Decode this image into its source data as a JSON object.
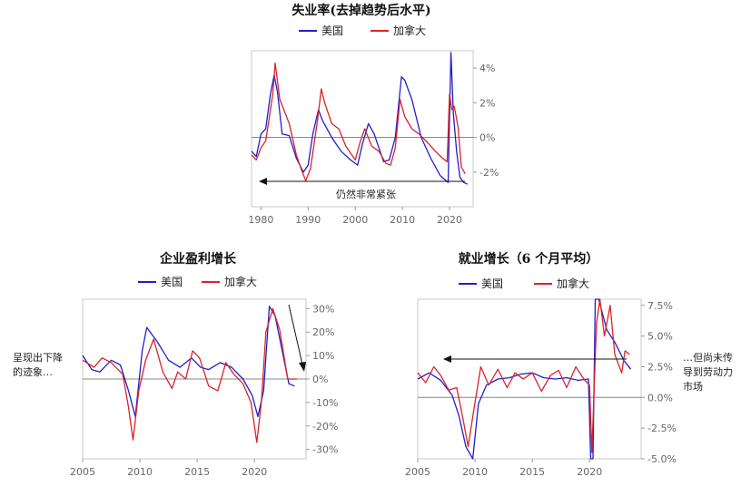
{
  "colors": {
    "us": "#1f1fcc",
    "ca": "#d8232a",
    "zero": "#888888"
  },
  "legend": {
    "us": "美国",
    "ca": "加拿大"
  },
  "side_notes": {
    "left": [
      "呈现出下降",
      "的迹象…"
    ],
    "right": [
      "…但尚未传",
      "导到劳动力",
      "市场"
    ]
  },
  "chart_data": [
    {
      "type": "line",
      "title": "失业率(去掉趋势后水平)",
      "annotation": "仍然非常紧张",
      "xlim": [
        1978,
        2025
      ],
      "ylim": [
        -4,
        5
      ],
      "xticks": [
        1980,
        1990,
        2000,
        2010,
        2020
      ],
      "xtick_labels": [
        "1980",
        "1990",
        "2000",
        "2010",
        "2020"
      ],
      "yticks": [
        -2,
        0,
        2,
        4
      ],
      "ytick_labels": [
        "-2%",
        "0%",
        "2%",
        "4%"
      ],
      "series": [
        {
          "name": "美国",
          "color_key": "us",
          "x": [
            1978,
            1979,
            1980,
            1981,
            1982,
            1982.8,
            1983.5,
            1984.5,
            1986,
            1987.5,
            1989,
            1990,
            1991,
            1992.2,
            1993,
            1995,
            1997,
            1999,
            2000.5,
            2001.5,
            2002.8,
            2004,
            2006,
            2007.2,
            2008.5,
            2009.8,
            2010.5,
            2012,
            2014,
            2016,
            2018,
            2019.7,
            2020.3,
            2020.8,
            2021.5,
            2022.2,
            2023,
            2023.8
          ],
          "y": [
            -0.8,
            -1.1,
            0.2,
            0.5,
            2.5,
            3.6,
            2.6,
            0.2,
            0.1,
            -1.2,
            -2.0,
            -1.6,
            0.2,
            1.6,
            1.0,
            0.0,
            -0.8,
            -1.3,
            -1.6,
            -0.4,
            0.8,
            0.2,
            -1.4,
            -1.3,
            0.0,
            3.5,
            3.3,
            2.2,
            0.0,
            -1.2,
            -2.2,
            -2.6,
            4.9,
            1.4,
            -0.8,
            -2.3,
            -2.6,
            -2.7
          ]
        },
        {
          "name": "加拿大",
          "color_key": "ca",
          "x": [
            1978,
            1979,
            1980,
            1981,
            1982.5,
            1983,
            1984,
            1986,
            1987.5,
            1988.5,
            1989.5,
            1990.5,
            1992,
            1992.8,
            1993.5,
            1995,
            1996.5,
            1998,
            2000,
            2001,
            2002,
            2003.5,
            2005,
            2006.5,
            2007.5,
            2008.5,
            2009.5,
            2010.5,
            2012,
            2013.5,
            2015,
            2017,
            2018.5,
            2019.5,
            2020,
            2020.5,
            2021,
            2021.8,
            2022.5,
            2023.3
          ],
          "y": [
            -1.0,
            -1.3,
            -0.6,
            -0.2,
            2.5,
            4.3,
            2.2,
            0.8,
            -1.0,
            -1.8,
            -2.5,
            -1.8,
            1.0,
            2.8,
            2.0,
            0.8,
            0.5,
            -0.5,
            -1.3,
            -0.3,
            0.5,
            -0.5,
            -0.8,
            -1.5,
            -1.6,
            -0.6,
            2.2,
            1.2,
            0.5,
            0.2,
            -0.2,
            -0.8,
            -1.2,
            -1.4,
            2.5,
            1.6,
            1.8,
            0.6,
            -1.7,
            -2.1
          ]
        }
      ]
    },
    {
      "type": "line",
      "title": "企业盈利增长",
      "xlim": [
        2005,
        2024.5
      ],
      "ylim": [
        -34,
        34
      ],
      "xticks": [
        2005,
        2010,
        2015,
        2020
      ],
      "xtick_labels": [
        "2005",
        "2010",
        "2015",
        "2020"
      ],
      "yticks": [
        -30,
        -20,
        -10,
        0,
        10,
        20,
        30
      ],
      "ytick_labels": [
        "-30%",
        "-20%",
        "-10%",
        "0%",
        "10%",
        "20%",
        "30%"
      ],
      "series": [
        {
          "name": "美国",
          "color_key": "us",
          "x": [
            2005,
            2005.8,
            2006.5,
            2007.5,
            2008.3,
            2009,
            2009.6,
            2010.2,
            2010.6,
            2011.5,
            2012.5,
            2013.5,
            2014.5,
            2015.3,
            2016,
            2017,
            2018,
            2019,
            2019.8,
            2020.3,
            2020.8,
            2021.3,
            2021.8,
            2022.5,
            2023,
            2023.5
          ],
          "y": [
            10,
            4,
            3,
            8,
            6,
            -5,
            -16,
            12,
            22,
            16,
            8,
            5,
            9,
            5,
            4,
            7,
            5,
            0,
            -7,
            -16,
            -5,
            31,
            27,
            10,
            -2,
            -3
          ]
        },
        {
          "name": "加拿大",
          "color_key": "ca",
          "x": [
            2005,
            2006,
            2006.7,
            2007.5,
            2008.5,
            2009,
            2009.4,
            2009.9,
            2010.5,
            2011.2,
            2012,
            2012.8,
            2013.3,
            2014,
            2014.6,
            2015.2,
            2016,
            2016.8,
            2017.5,
            2018.2,
            2019,
            2019.7,
            2020.2,
            2020.6,
            2021,
            2021.6,
            2022.2,
            2022.9,
            2023.4,
            2023.7
          ],
          "y": [
            8,
            5,
            9,
            7,
            2,
            -12,
            -26,
            -5,
            8,
            17,
            3,
            -4,
            3,
            0,
            12,
            9,
            -3,
            -5,
            7,
            2,
            -2,
            -10,
            -27,
            -10,
            20,
            30,
            21,
            0,
            0,
            0
          ]
        }
      ]
    },
    {
      "type": "line",
      "title": "就业增长（6 个月平均）",
      "xlim": [
        2005,
        2024.5
      ],
      "ylim": [
        -5,
        8
      ],
      "xticks": [
        2005,
        2010,
        2015,
        2020
      ],
      "xtick_labels": [
        "2005",
        "2010",
        "2015",
        "2020"
      ],
      "yticks": [
        -5,
        -2.5,
        0,
        2.5,
        5,
        7.5
      ],
      "ytick_labels": [
        "-5.0%",
        "-2.5%",
        "0.0%",
        "2.5%",
        "5.0%",
        "7.5%"
      ],
      "series": [
        {
          "name": "美国",
          "color_key": "us",
          "x": [
            2005,
            2006,
            2007,
            2008,
            2008.6,
            2009.2,
            2009.8,
            2010.3,
            2011,
            2012,
            2013,
            2014,
            2015,
            2016,
            2017,
            2018,
            2019,
            2019.9,
            2020.1,
            2020.3,
            2020.5,
            2020.8,
            2021.5,
            2022.2,
            2023,
            2023.6
          ],
          "y": [
            1.5,
            2.0,
            1.4,
            0.2,
            -1.5,
            -4.0,
            -5.0,
            -0.5,
            1.0,
            1.5,
            1.6,
            1.9,
            2.0,
            1.6,
            1.5,
            1.6,
            1.4,
            1.5,
            -5.0,
            -5.0,
            8.0,
            8.0,
            5.5,
            4.5,
            3.0,
            2.3
          ]
        },
        {
          "name": "加拿大",
          "color_key": "ca",
          "x": [
            2005,
            2005.7,
            2006.4,
            2007,
            2007.7,
            2008.4,
            2008.9,
            2009.4,
            2009.9,
            2010.5,
            2011.2,
            2012,
            2012.8,
            2013.5,
            2014.2,
            2015,
            2015.8,
            2016.6,
            2017.3,
            2018,
            2018.8,
            2019.5,
            2020,
            2020.2,
            2020.6,
            2020.9,
            2021.3,
            2021.8,
            2022.2,
            2022.8,
            2023.1,
            2023.5
          ],
          "y": [
            2.0,
            1.2,
            2.5,
            1.8,
            0.6,
            0.8,
            -1.5,
            -4.0,
            -1.0,
            2.5,
            1.0,
            2.3,
            0.8,
            2.0,
            1.5,
            2.0,
            0.5,
            1.8,
            2.2,
            0.8,
            2.5,
            1.5,
            1.0,
            -4.5,
            6.0,
            8.0,
            5.0,
            7.5,
            3.5,
            2.0,
            3.8,
            3.5
          ]
        }
      ]
    }
  ]
}
